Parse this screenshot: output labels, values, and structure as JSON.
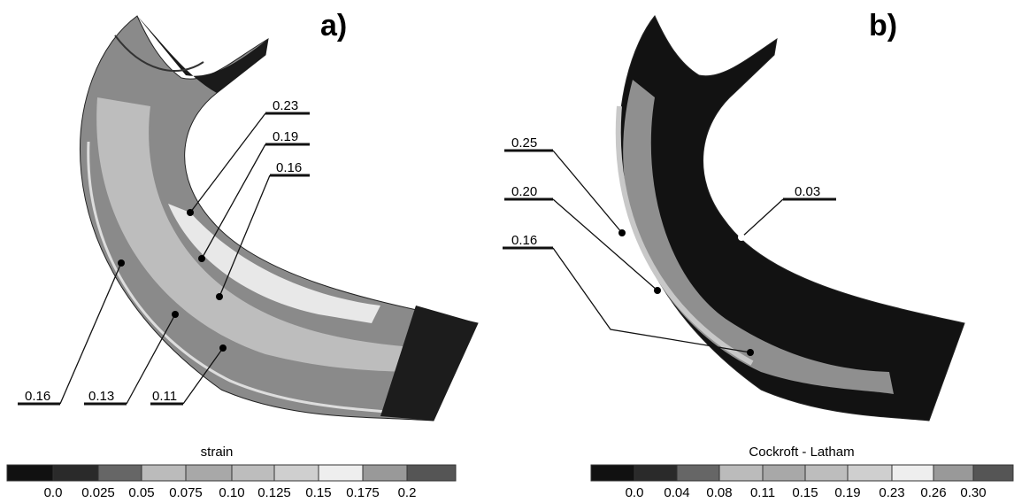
{
  "panels": [
    {
      "label": "a)",
      "annotations": [
        "0.23",
        "0.19",
        "0.16",
        "0.16",
        "0.13",
        "0.11"
      ],
      "colorbar": {
        "title": "strain",
        "ticks": [
          "0.0",
          "0.025",
          "0.05",
          "0.075",
          "0.10",
          "0.125",
          "0.15",
          "0.175",
          "0.2"
        ]
      }
    },
    {
      "label": "b)",
      "annotations": [
        "0.25",
        "0.20",
        "0.16",
        "0.03"
      ],
      "colorbar": {
        "title": "Cockroft - Latham",
        "ticks": [
          "0.0",
          "0.04",
          "0.08",
          "0.11",
          "0.15",
          "0.19",
          "0.23",
          "0.26",
          "0.30"
        ]
      }
    }
  ]
}
